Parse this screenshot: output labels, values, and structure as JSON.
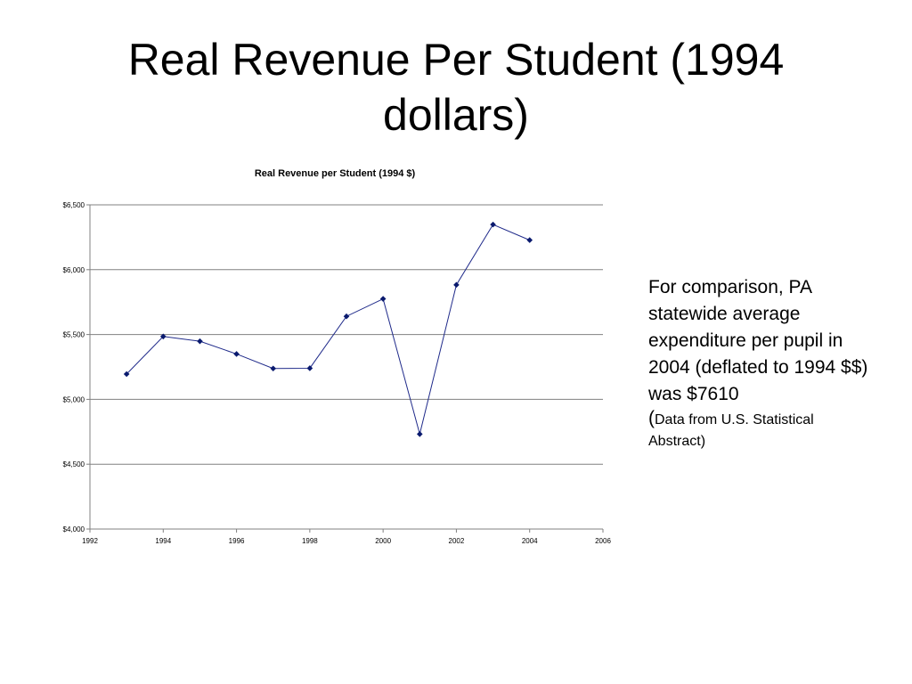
{
  "slide": {
    "title": "Real Revenue Per Student (1994 dollars)"
  },
  "note": {
    "text": "For comparison, PA statewide average expenditure per pupil in 2004 (deflated to 1994 $$) was $7610",
    "source_open": "(",
    "source_text": "Data from U.S. Statistical Abstract)"
  },
  "chart_data": {
    "type": "line",
    "title": "Real Revenue per Student (1994 $)",
    "xlabel": "",
    "ylabel": "",
    "x": [
      1993,
      1994,
      1995,
      1996,
      1997,
      1998,
      1999,
      2000,
      2001,
      2002,
      2003,
      2004
    ],
    "series": [
      {
        "values": [
          5195,
          5485,
          5448,
          5350,
          5238,
          5240,
          5640,
          5775,
          4732,
          5883,
          6348,
          6228
        ]
      }
    ],
    "xlim": [
      1992,
      2006
    ],
    "ylim": [
      4000,
      6500
    ],
    "x_ticks": [
      "1992",
      "1994",
      "1996",
      "1998",
      "2000",
      "2002",
      "2004",
      "2006"
    ],
    "y_ticks": [
      "$4,000",
      "$4,500",
      "$5,000",
      "$5,500",
      "$6,000",
      "$6,500"
    ],
    "grid": "horizontal",
    "marker": "diamond",
    "colors": {
      "line": "#1f2a8a",
      "marker": "#0a1a6e",
      "grid": "#808080",
      "axis": "#808080"
    }
  }
}
